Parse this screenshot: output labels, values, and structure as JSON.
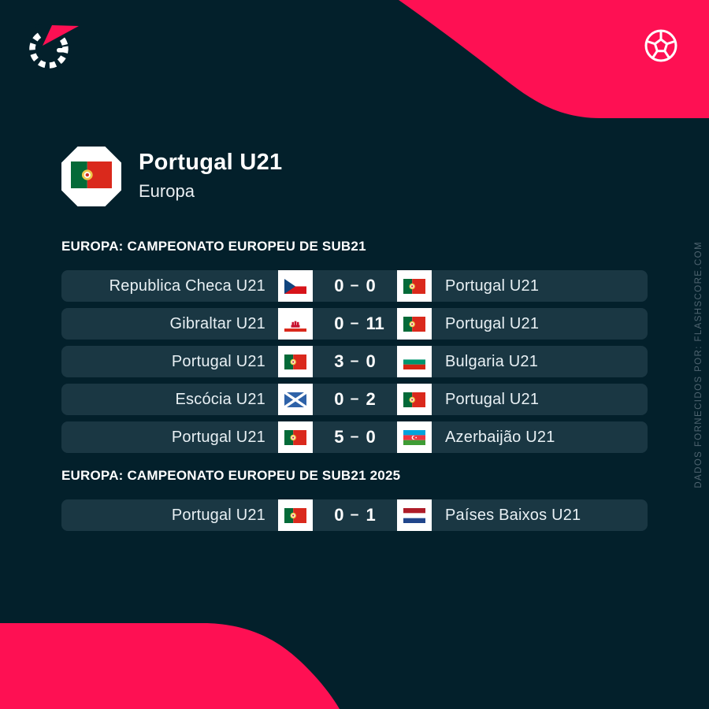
{
  "colors": {
    "background": "#03202b",
    "accent_pink": "#fe1053",
    "row_background": "#1a3743",
    "text_primary": "#ffffff",
    "text_team": "#e8f0f4",
    "watermark": "#4f6470"
  },
  "brand": {
    "logo": "flashscore-logo",
    "corner_icon": "football-icon",
    "watermark_text": "DADOS FORNECIDOS POR: FLASHSCORE.COM"
  },
  "header": {
    "title": "Portugal U21",
    "subtitle": "Europa",
    "crest_flag": "pt"
  },
  "score_separator": "–",
  "sections": [
    {
      "title": "EUROPA: CAMPEONATO EUROPEU DE SUB21",
      "matches": [
        {
          "home": "Republica Checa U21",
          "home_flag": "cz",
          "home_score": "0",
          "away_score": "0",
          "away_flag": "pt",
          "away": "Portugal U21"
        },
        {
          "home": "Gibraltar U21",
          "home_flag": "gi",
          "home_score": "0",
          "away_score": "11",
          "away_flag": "pt",
          "away": "Portugal U21"
        },
        {
          "home": "Portugal U21",
          "home_flag": "pt",
          "home_score": "3",
          "away_score": "0",
          "away_flag": "bg",
          "away": "Bulgaria U21"
        },
        {
          "home": "Escócia U21",
          "home_flag": "sct",
          "home_score": "0",
          "away_score": "2",
          "away_flag": "pt",
          "away": "Portugal U21"
        },
        {
          "home": "Portugal U21",
          "home_flag": "pt",
          "home_score": "5",
          "away_score": "0",
          "away_flag": "az",
          "away": "Azerbaijão U21"
        }
      ]
    },
    {
      "title": "EUROPA: CAMPEONATO EUROPEU DE SUB21 2025",
      "matches": [
        {
          "home": "Portugal U21",
          "home_flag": "pt",
          "home_score": "0",
          "away_score": "1",
          "away_flag": "nl",
          "away": "Países Baixos U21"
        }
      ]
    }
  ],
  "flag_names": {
    "pt": "portugal-flag-icon",
    "cz": "czech-republic-flag-icon",
    "gi": "gibraltar-flag-icon",
    "bg": "bulgaria-flag-icon",
    "sct": "scotland-flag-icon",
    "az": "azerbaijan-flag-icon",
    "nl": "netherlands-flag-icon"
  }
}
